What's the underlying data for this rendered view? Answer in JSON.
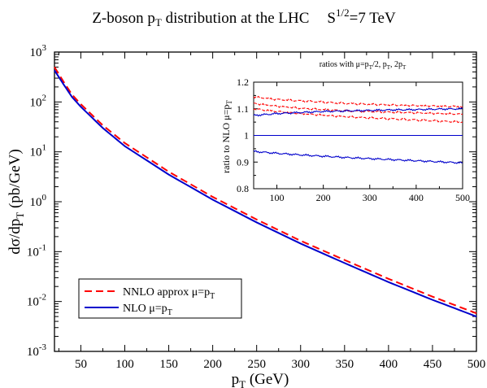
{
  "chart_data": [
    {
      "type": "line",
      "title_main": "Z-boson p",
      "title_sub": "T",
      "title_tail": " distribution at the LHC",
      "energy_base": "S",
      "energy_sup": "1/2",
      "energy_tail": "=7 TeV",
      "xlabel_main": "p",
      "xlabel_sub": "T",
      "xlabel_tail": " (GeV)",
      "ylabel_pre": "dσ/dp",
      "ylabel_sub": "T",
      "ylabel_tail": " (pb/GeV)",
      "xlim": [
        20,
        500
      ],
      "ylim_log10": [
        -3,
        3
      ],
      "yscale": "log",
      "x_ticks": [
        "50",
        "100",
        "150",
        "200",
        "250",
        "300",
        "350",
        "400",
        "450",
        "500"
      ],
      "y_ticks": [
        {
          "base": "10",
          "exp": "-3"
        },
        {
          "base": "10",
          "exp": "-2"
        },
        {
          "base": "10",
          "exp": "-1"
        },
        {
          "base": "10",
          "exp": "0"
        },
        {
          "base": "10",
          "exp": "1"
        },
        {
          "base": "10",
          "exp": "2"
        },
        {
          "base": "10",
          "exp": "3"
        }
      ],
      "legend_position": "bottom-left",
      "series": [
        {
          "name_main": "NNLO approx   μ=p",
          "name_sub": "T",
          "color": "#ff0000",
          "dashed": true,
          "x": [
            20,
            30,
            40,
            50,
            75,
            100,
            150,
            200,
            250,
            300,
            350,
            400,
            450,
            500
          ],
          "y": [
            500,
            260,
            140,
            90,
            34,
            15,
            4.0,
            1.25,
            0.44,
            0.165,
            0.068,
            0.0285,
            0.0125,
            0.0058
          ]
        },
        {
          "name_main": "NLO  μ=p",
          "name_sub": "T",
          "color": "#0000cc",
          "dashed": false,
          "x": [
            20,
            30,
            40,
            50,
            75,
            100,
            150,
            200,
            250,
            300,
            350,
            400,
            450,
            500
          ],
          "y": [
            430,
            230,
            125,
            80,
            30,
            13,
            3.5,
            1.1,
            0.385,
            0.145,
            0.059,
            0.0245,
            0.0108,
            0.005
          ]
        }
      ]
    },
    {
      "type": "line",
      "title_pre": "ratios with μ=p",
      "title_s1": "T",
      "title_mid1": "/2, p",
      "title_s2": "T",
      "title_mid2": ", 2p",
      "title_s3": "T",
      "ylabel_main": "ratio to NLO μ=p",
      "ylabel_sub": "T",
      "xlim": [
        50,
        500
      ],
      "ylim": [
        0.8,
        1.2
      ],
      "x_ticks": [
        "100",
        "200",
        "300",
        "400",
        "500"
      ],
      "y_ticks": [
        "0.8",
        "0.9",
        "1",
        "1.1",
        "1.2"
      ],
      "series": [
        {
          "color": "#ff0000",
          "dashed": true,
          "x": [
            50,
            100,
            150,
            200,
            250,
            300,
            350,
            400,
            450,
            500
          ],
          "y": [
            1.145,
            1.135,
            1.13,
            1.125,
            1.12,
            1.117,
            1.114,
            1.112,
            1.11,
            1.108
          ]
        },
        {
          "color": "#ff0000",
          "dashed": true,
          "x": [
            50,
            100,
            150,
            200,
            250,
            300,
            350,
            400,
            450,
            500
          ],
          "y": [
            1.12,
            1.11,
            1.102,
            1.097,
            1.092,
            1.09,
            1.087,
            1.085,
            1.082,
            1.08
          ]
        },
        {
          "color": "#ff0000",
          "dashed": true,
          "x": [
            50,
            100,
            150,
            200,
            250,
            300,
            350,
            400,
            450,
            500
          ],
          "y": [
            1.1,
            1.09,
            1.082,
            1.076,
            1.07,
            1.066,
            1.062,
            1.058,
            1.054,
            1.05
          ]
        },
        {
          "color": "#0000cc",
          "dashed": false,
          "x": [
            50,
            100,
            150,
            200,
            250,
            300,
            350,
            400,
            450,
            500
          ],
          "y": [
            1.075,
            1.082,
            1.086,
            1.09,
            1.092,
            1.094,
            1.096,
            1.097,
            1.099,
            1.1
          ]
        },
        {
          "color": "#0000cc",
          "dashed": false,
          "x": [
            50,
            500
          ],
          "y": [
            1.0,
            1.0
          ]
        },
        {
          "color": "#0000cc",
          "dashed": false,
          "x": [
            50,
            100,
            150,
            200,
            250,
            300,
            350,
            400,
            450,
            500
          ],
          "y": [
            0.94,
            0.933,
            0.927,
            0.922,
            0.917,
            0.913,
            0.909,
            0.905,
            0.901,
            0.897
          ]
        }
      ]
    }
  ]
}
